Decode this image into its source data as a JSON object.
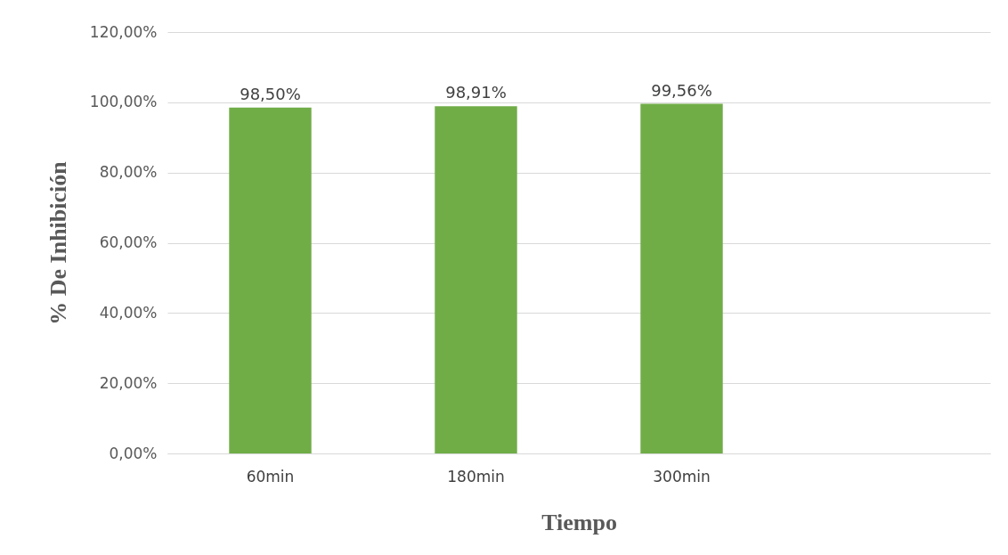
{
  "chart_data": {
    "type": "bar",
    "xlabel": "Tiempo",
    "ylabel": "% De Inhibición",
    "categories": [
      "60min",
      "180min",
      "300min",
      null
    ],
    "values": [
      98.5,
      98.91,
      99.56,
      null
    ],
    "value_labels": [
      "98,50%",
      "98,91%",
      "99,56%",
      null
    ],
    "color": "#70ad47",
    "ylim": [
      0,
      120
    ],
    "yticks": [
      {
        "value": 0,
        "label": "0,00%"
      },
      {
        "value": 20,
        "label": "20,00%"
      },
      {
        "value": 40,
        "label": "40,00%"
      },
      {
        "value": 60,
        "label": "60,00%"
      },
      {
        "value": 80,
        "label": "80,00%"
      },
      {
        "value": 100,
        "label": "100,00%"
      },
      {
        "value": 120,
        "label": "120,00%"
      }
    ],
    "grid": "y"
  }
}
